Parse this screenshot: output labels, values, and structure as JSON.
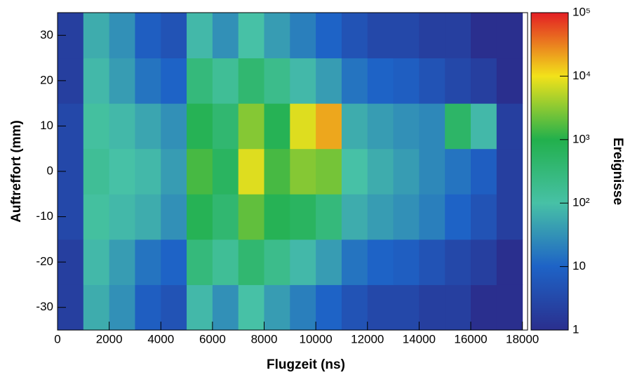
{
  "chart_data": {
    "type": "heatmap",
    "x_label": "Flugzeit (ns)",
    "y_label": "Auftreffort (mm)",
    "z_label": "Ereignisse",
    "xbins": [
      0,
      1000,
      2000,
      3000,
      4000,
      5000,
      6000,
      7000,
      8000,
      9000,
      10000,
      11000,
      12000,
      13000,
      14000,
      15000,
      16000,
      17000,
      18000
    ],
    "ybins": [
      -35,
      -25,
      -15,
      -5,
      5,
      15,
      25,
      35
    ],
    "z": [
      [
        2,
        60,
        30,
        8,
        5,
        80,
        30,
        100,
        40,
        20,
        10,
        5,
        3,
        3,
        2,
        2,
        1,
        1
      ],
      [
        2,
        80,
        40,
        15,
        10,
        300,
        150,
        400,
        200,
        80,
        40,
        15,
        10,
        8,
        5,
        3,
        2,
        1
      ],
      [
        3,
        120,
        80,
        60,
        30,
        800,
        400,
        2000,
        800,
        600,
        300,
        60,
        40,
        30,
        20,
        10,
        5,
        2
      ],
      [
        3,
        150,
        100,
        80,
        40,
        1500,
        600,
        8000,
        1500,
        3000,
        2500,
        100,
        60,
        40,
        25,
        15,
        8,
        2
      ],
      [
        3,
        120,
        80,
        50,
        30,
        800,
        400,
        3000,
        800,
        8000,
        20000,
        60,
        40,
        30,
        25,
        500,
        80,
        2
      ],
      [
        2,
        80,
        40,
        15,
        10,
        300,
        150,
        400,
        200,
        80,
        40,
        15,
        10,
        8,
        5,
        3,
        2,
        1
      ],
      [
        2,
        60,
        30,
        8,
        5,
        80,
        30,
        100,
        40,
        20,
        10,
        5,
        3,
        3,
        2,
        2,
        1,
        1
      ]
    ],
    "xlim": [
      0,
      18200
    ],
    "ylim": [
      -35,
      35
    ],
    "xticks": [
      0,
      2000,
      4000,
      6000,
      8000,
      10000,
      12000,
      14000,
      16000,
      18000
    ],
    "yticks": [
      -30,
      -20,
      -10,
      0,
      10,
      20,
      30
    ],
    "zlim": [
      1,
      100000
    ],
    "log_z": true,
    "zticks": [
      1,
      10,
      {
        "value": 100,
        "label": "10²"
      },
      {
        "value": 1000,
        "label": "10³"
      },
      {
        "value": 10000,
        "label": "10⁴"
      },
      {
        "value": 100000,
        "label": "10⁵"
      }
    ],
    "colorscale": [
      "#2a2f8e",
      "#1e63c6",
      "#47c1a6",
      "#22b04c",
      "#f2e21a",
      "#e31e24"
    ]
  }
}
